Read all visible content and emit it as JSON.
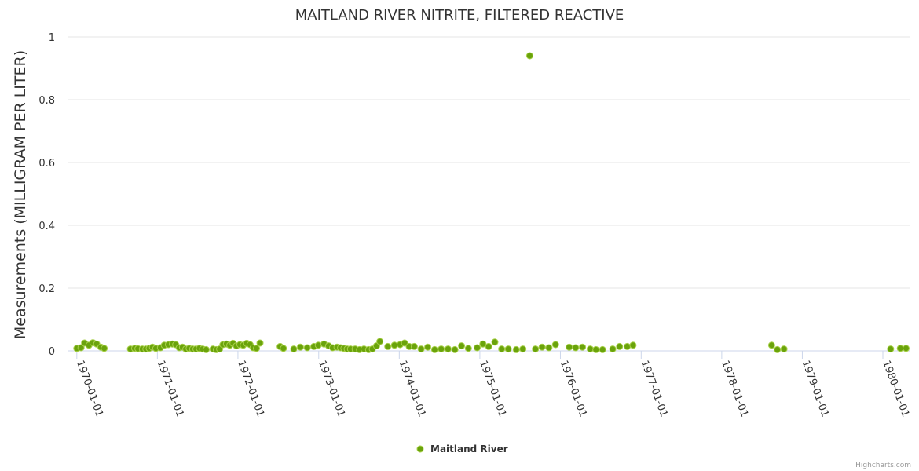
{
  "chart_data": {
    "type": "scatter",
    "title": "MAITLAND RIVER NITRITE, FILTERED REACTIVE",
    "ylabel": "Measurements (MILLIGRAM PER LITER)",
    "xlabel": "",
    "x_axis_type": "datetime",
    "xlim": [
      "1969-11-20",
      "1980-05-01"
    ],
    "ylim": [
      0,
      1
    ],
    "y_ticks": [
      0,
      0.2,
      0.4,
      0.6,
      0.8,
      1
    ],
    "y_tick_labels": [
      "0",
      "0.2",
      "0.4",
      "0.6",
      "0.8",
      "1"
    ],
    "x_ticks": [
      "1970-01-01",
      "1971-01-01",
      "1972-01-01",
      "1973-01-01",
      "1974-01-01",
      "1975-01-01",
      "1976-01-01",
      "1977-01-01",
      "1978-01-01",
      "1979-01-01",
      "1980-01-01"
    ],
    "grid": true,
    "legend_position": "bottom-center",
    "credits": "Highcharts.com",
    "color": "#6aa30b",
    "series": [
      {
        "name": "Maitland River",
        "points": [
          [
            "1970-01-01",
            0.008
          ],
          [
            "1970-01-20",
            0.01
          ],
          [
            "1970-02-05",
            0.025
          ],
          [
            "1970-02-25",
            0.018
          ],
          [
            "1970-03-15",
            0.026
          ],
          [
            "1970-04-01",
            0.022
          ],
          [
            "1970-04-20",
            0.012
          ],
          [
            "1970-05-05",
            0.008
          ],
          [
            "1970-09-01",
            0.006
          ],
          [
            "1970-09-20",
            0.008
          ],
          [
            "1970-10-05",
            0.007
          ],
          [
            "1970-10-25",
            0.006
          ],
          [
            "1970-11-10",
            0.006
          ],
          [
            "1970-11-25",
            0.008
          ],
          [
            "1970-12-10",
            0.012
          ],
          [
            "1970-12-25",
            0.008
          ],
          [
            "1971-01-15",
            0.01
          ],
          [
            "1971-02-01",
            0.018
          ],
          [
            "1971-02-20",
            0.02
          ],
          [
            "1971-03-10",
            0.022
          ],
          [
            "1971-03-25",
            0.02
          ],
          [
            "1971-04-10",
            0.01
          ],
          [
            "1971-04-25",
            0.012
          ],
          [
            "1971-05-10",
            0.006
          ],
          [
            "1971-05-25",
            0.008
          ],
          [
            "1971-06-10",
            0.006
          ],
          [
            "1971-06-25",
            0.006
          ],
          [
            "1971-07-10",
            0.008
          ],
          [
            "1971-07-25",
            0.006
          ],
          [
            "1971-08-10",
            0.004
          ],
          [
            "1971-09-10",
            0.006
          ],
          [
            "1971-09-25",
            0.004
          ],
          [
            "1971-10-10",
            0.006
          ],
          [
            "1971-10-25",
            0.02
          ],
          [
            "1971-11-10",
            0.022
          ],
          [
            "1971-11-25",
            0.018
          ],
          [
            "1971-12-10",
            0.024
          ],
          [
            "1971-12-25",
            0.016
          ],
          [
            "1972-01-10",
            0.02
          ],
          [
            "1972-01-25",
            0.018
          ],
          [
            "1972-02-10",
            0.024
          ],
          [
            "1972-02-25",
            0.02
          ],
          [
            "1972-03-10",
            0.01
          ],
          [
            "1972-03-25",
            0.008
          ],
          [
            "1972-04-10",
            0.025
          ],
          [
            "1972-07-10",
            0.014
          ],
          [
            "1972-07-25",
            0.008
          ],
          [
            "1972-09-10",
            0.006
          ],
          [
            "1972-10-10",
            0.012
          ],
          [
            "1972-11-10",
            0.01
          ],
          [
            "1972-12-10",
            0.014
          ],
          [
            "1972-12-30",
            0.018
          ],
          [
            "1973-01-25",
            0.022
          ],
          [
            "1973-02-15",
            0.016
          ],
          [
            "1973-03-05",
            0.01
          ],
          [
            "1973-03-25",
            0.012
          ],
          [
            "1973-04-10",
            0.01
          ],
          [
            "1973-04-25",
            0.008
          ],
          [
            "1973-05-10",
            0.006
          ],
          [
            "1973-05-25",
            0.006
          ],
          [
            "1973-06-15",
            0.006
          ],
          [
            "1973-07-05",
            0.004
          ],
          [
            "1973-07-25",
            0.006
          ],
          [
            "1973-08-15",
            0.004
          ],
          [
            "1973-09-01",
            0.006
          ],
          [
            "1973-09-20",
            0.016
          ],
          [
            "1973-10-05",
            0.03
          ],
          [
            "1973-11-10",
            0.014
          ],
          [
            "1973-12-10",
            0.018
          ],
          [
            "1974-01-05",
            0.02
          ],
          [
            "1974-01-25",
            0.025
          ],
          [
            "1974-02-15",
            0.014
          ],
          [
            "1974-03-10",
            0.014
          ],
          [
            "1974-04-10",
            0.006
          ],
          [
            "1974-05-10",
            0.012
          ],
          [
            "1974-06-10",
            0.004
          ],
          [
            "1974-07-10",
            0.006
          ],
          [
            "1974-08-10",
            0.006
          ],
          [
            "1974-09-10",
            0.004
          ],
          [
            "1974-10-10",
            0.016
          ],
          [
            "1974-11-10",
            0.008
          ],
          [
            "1974-12-20",
            0.01
          ],
          [
            "1975-01-15",
            0.022
          ],
          [
            "1975-02-10",
            0.014
          ],
          [
            "1975-03-10",
            0.028
          ],
          [
            "1975-04-10",
            0.006
          ],
          [
            "1975-05-10",
            0.006
          ],
          [
            "1975-06-15",
            0.004
          ],
          [
            "1975-07-15",
            0.006
          ],
          [
            "1975-08-15",
            0.94
          ],
          [
            "1975-09-10",
            0.006
          ],
          [
            "1975-10-10",
            0.012
          ],
          [
            "1975-11-10",
            0.01
          ],
          [
            "1975-12-10",
            0.02
          ],
          [
            "1976-02-10",
            0.012
          ],
          [
            "1976-03-10",
            0.01
          ],
          [
            "1976-04-10",
            0.012
          ],
          [
            "1976-05-15",
            0.006
          ],
          [
            "1976-06-10",
            0.004
          ],
          [
            "1976-07-10",
            0.004
          ],
          [
            "1976-08-25",
            0.006
          ],
          [
            "1976-09-25",
            0.014
          ],
          [
            "1976-10-30",
            0.014
          ],
          [
            "1976-11-25",
            0.018
          ],
          [
            "1978-08-15",
            0.018
          ],
          [
            "1978-09-10",
            0.004
          ],
          [
            "1978-10-10",
            0.006
          ],
          [
            "1980-02-05",
            0.006
          ],
          [
            "1980-03-20",
            0.008
          ],
          [
            "1980-04-15",
            0.008
          ]
        ]
      }
    ]
  }
}
